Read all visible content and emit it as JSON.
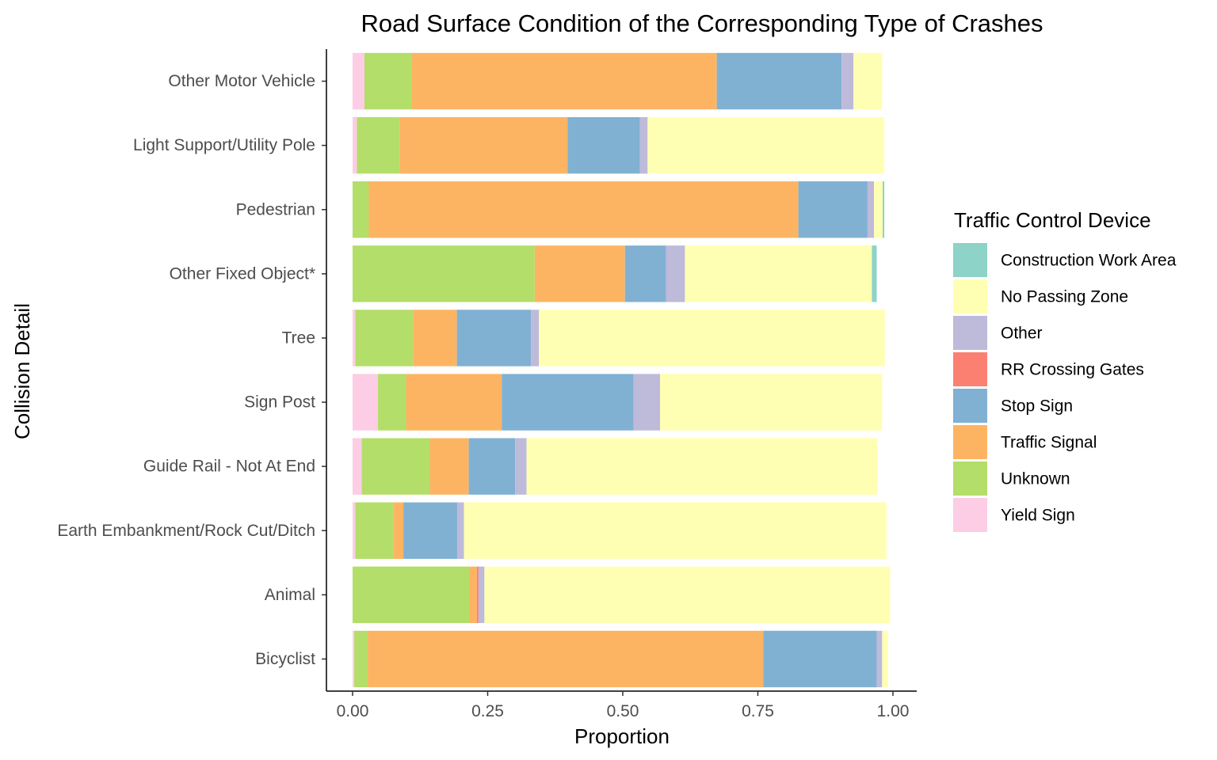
{
  "chart_data": {
    "type": "bar",
    "orientation": "horizontal",
    "stacked": true,
    "title": "Road Surface Condition of the Corresponding Type of Crashes",
    "xlabel": "Proportion",
    "ylabel": "Collision Detail",
    "xlim": [
      0,
      1
    ],
    "xticks": [
      "0.00",
      "0.25",
      "0.50",
      "0.75",
      "1.00"
    ],
    "grid": false,
    "legend_position": "right",
    "legend_title": "Traffic Control Device",
    "categories": [
      "Other Motor Vehicle",
      "Light Support/Utility Pole",
      "Pedestrian",
      "Other Fixed Object*",
      "Tree",
      "Sign Post",
      "Guide Rail - Not At End",
      "Earth Embankment/Rock Cut/Ditch",
      "Animal",
      "Bicyclist"
    ],
    "series": [
      {
        "name": "Yield Sign",
        "color": "#FCCDE5",
        "values": [
          0.022,
          0.008,
          0.0,
          0.0,
          0.005,
          0.047,
          0.017,
          0.005,
          0.0,
          0.003
        ]
      },
      {
        "name": "Unknown",
        "color": "#B3DE69",
        "values": [
          0.088,
          0.079,
          0.03,
          0.337,
          0.107,
          0.052,
          0.126,
          0.07,
          0.217,
          0.025
        ]
      },
      {
        "name": "Traffic Signal",
        "color": "#FDB462",
        "values": [
          0.564,
          0.311,
          0.795,
          0.167,
          0.081,
          0.177,
          0.072,
          0.019,
          0.013,
          0.732
        ]
      },
      {
        "name": "Stop Sign",
        "color": "#80B1D3",
        "values": [
          0.231,
          0.134,
          0.128,
          0.076,
          0.137,
          0.244,
          0.086,
          0.1,
          0.0,
          0.21
        ]
      },
      {
        "name": "RR Crossing Gates",
        "color": "#FB8072",
        "values": [
          0.0,
          0.0,
          0.0,
          0.0,
          0.0,
          0.0,
          0.0,
          0.0,
          0.003,
          0.0
        ]
      },
      {
        "name": "Other",
        "color": "#BEBADA",
        "values": [
          0.022,
          0.014,
          0.012,
          0.035,
          0.015,
          0.049,
          0.021,
          0.012,
          0.011,
          0.01
        ]
      },
      {
        "name": "No Passing Zone",
        "color": "#FFFFB3",
        "values": [
          0.053,
          0.438,
          0.016,
          0.346,
          0.64,
          0.411,
          0.649,
          0.782,
          0.751,
          0.011
        ]
      },
      {
        "name": "Construction Work Area",
        "color": "#8DD3C7",
        "values": [
          0.0,
          0.0,
          0.003,
          0.009,
          0.0,
          0.0,
          0.0,
          0.0,
          0.0,
          0.0
        ]
      }
    ],
    "legend_order": [
      "Construction Work Area",
      "No Passing Zone",
      "Other",
      "RR Crossing Gates",
      "Stop Sign",
      "Traffic Signal",
      "Unknown",
      "Yield Sign"
    ]
  }
}
